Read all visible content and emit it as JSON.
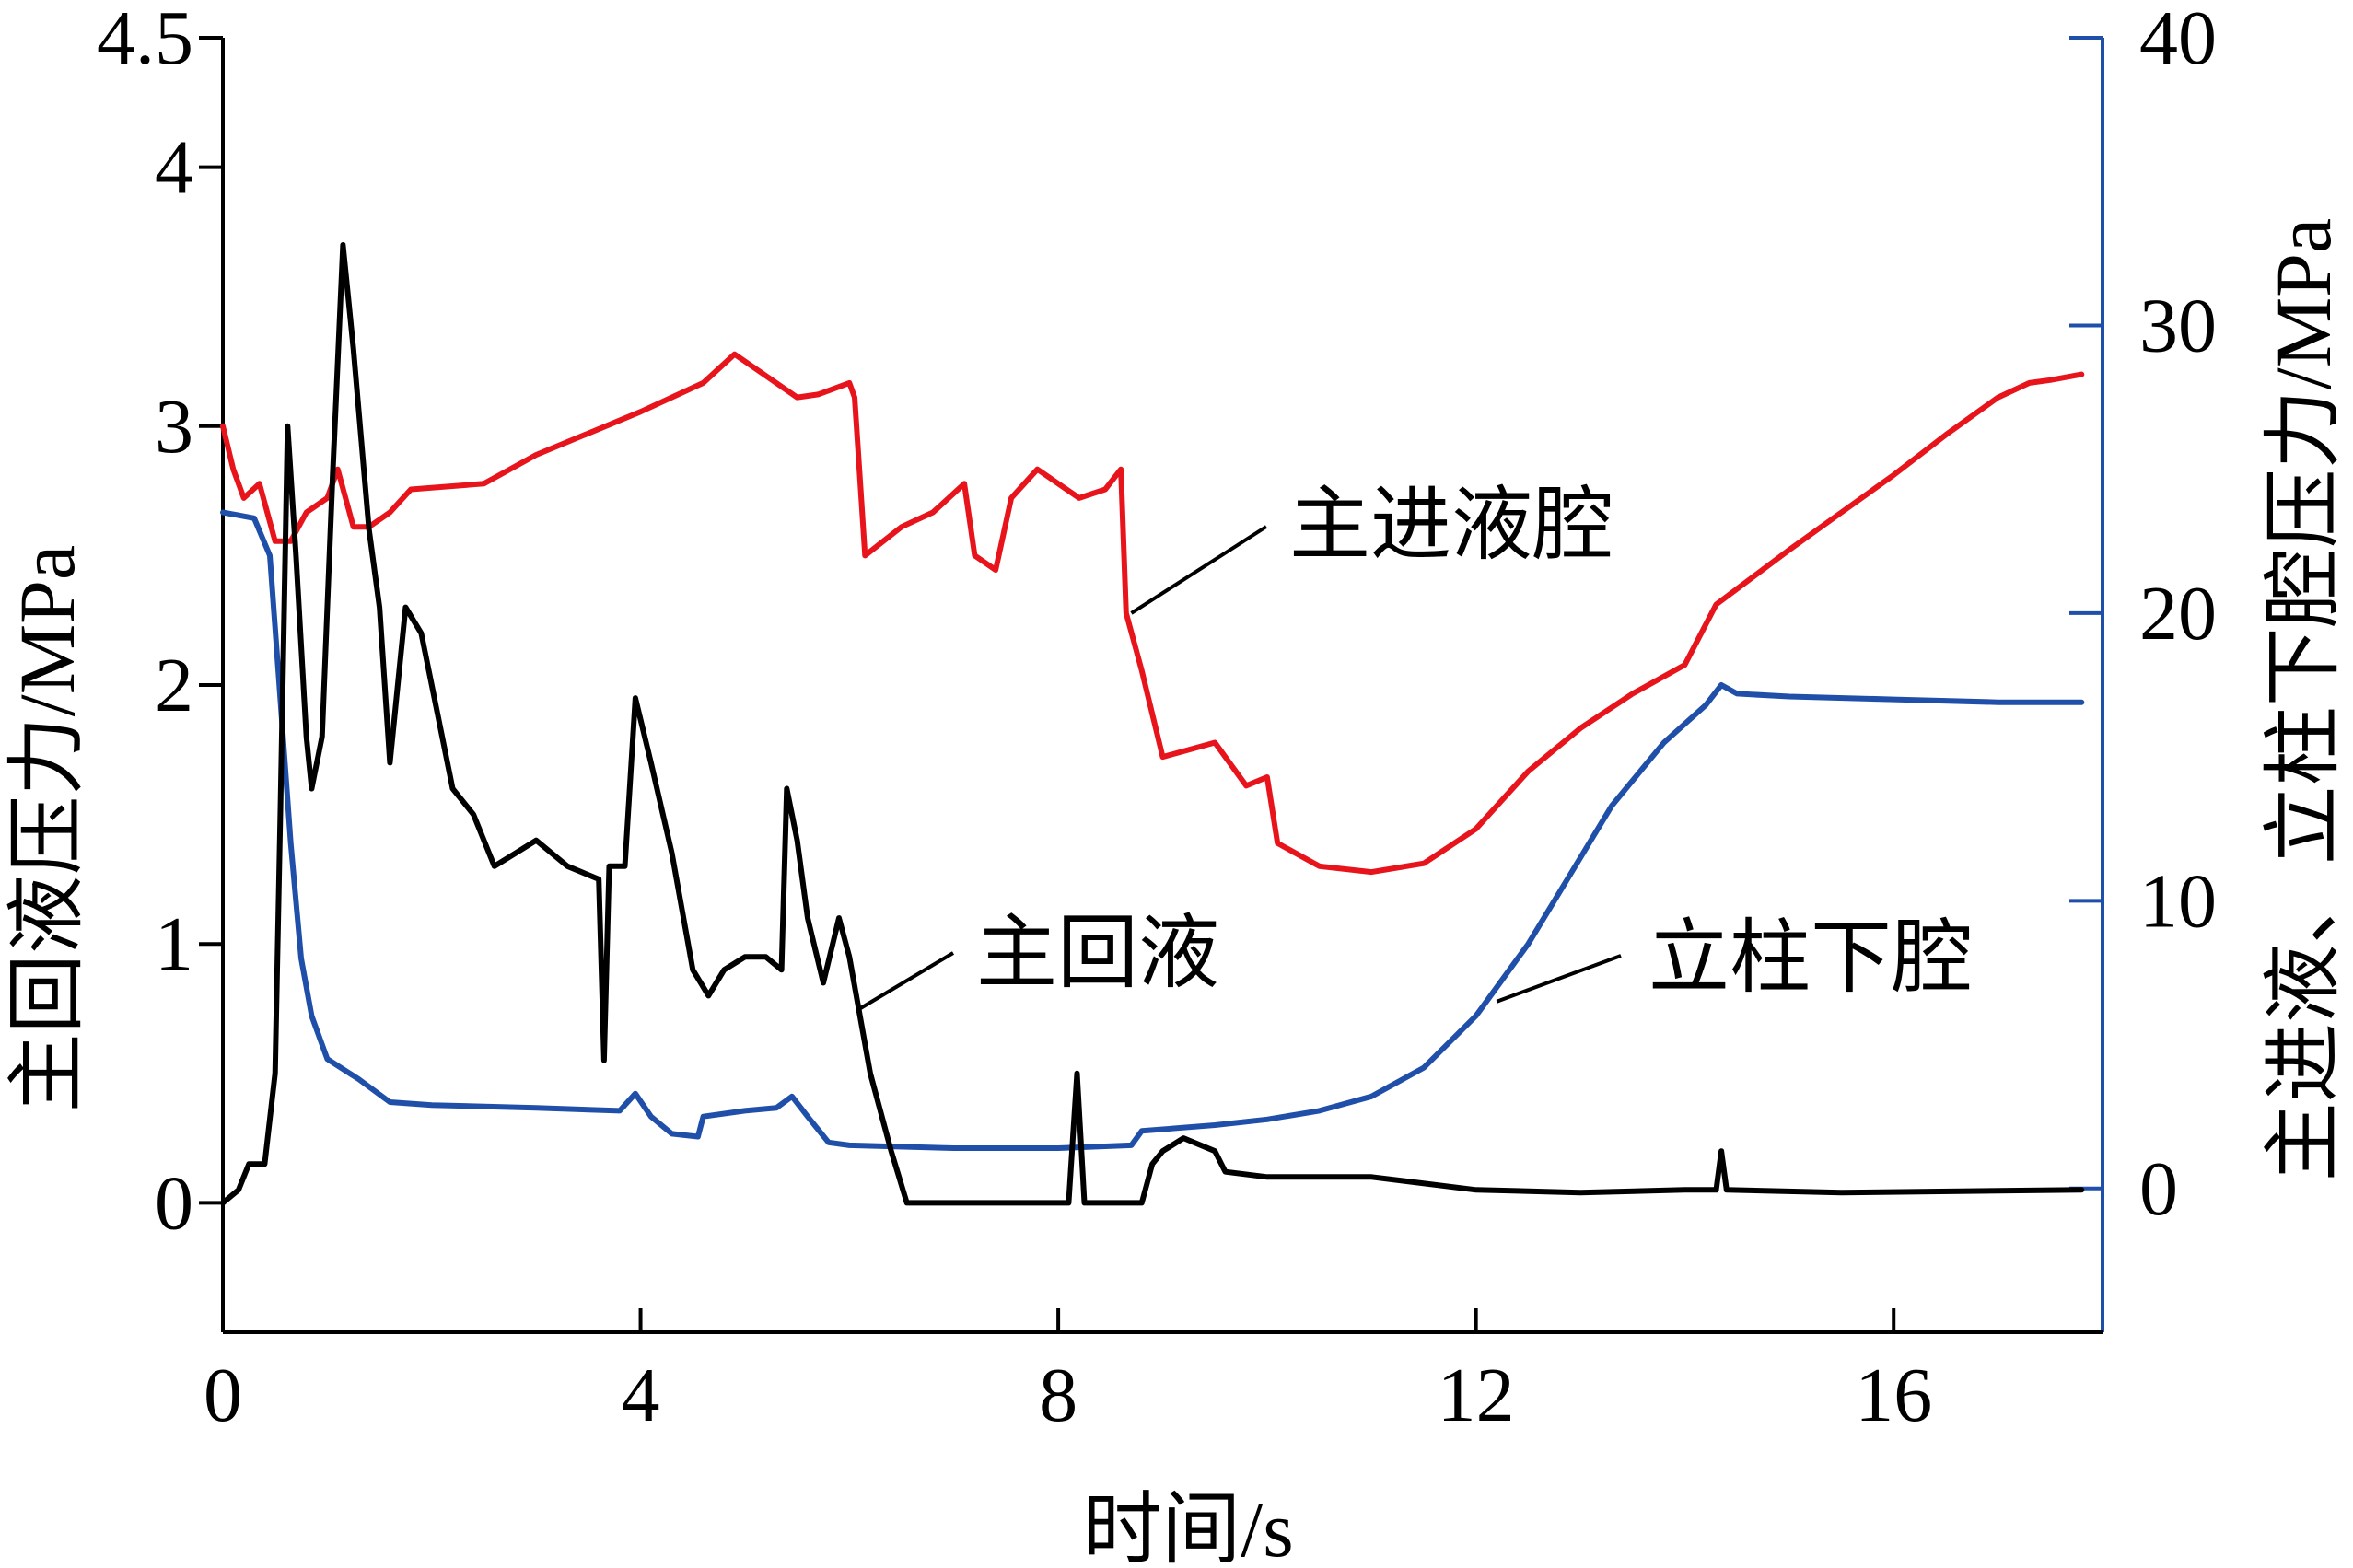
{
  "chart_data": {
    "type": "line",
    "xlabel": "时间/s",
    "ylabel_left": "主回液压力/MPa",
    "ylabel_right": "主进液、立柱下腔压力/MPa",
    "x_axis": {
      "min": 0,
      "max": 18,
      "ticks": [
        0,
        4,
        8,
        12,
        16
      ]
    },
    "y_left": {
      "min": -0.5,
      "max": 4.5,
      "ticks": [
        0,
        1,
        2,
        3,
        4,
        4.5
      ]
    },
    "y_right": {
      "min": -5,
      "max": 40,
      "ticks": [
        0,
        10,
        20,
        30,
        40
      ]
    },
    "grid": false,
    "colors": {
      "main_return": "#000000",
      "main_inlet": "#e8141b",
      "column_lower": "#1f4fa8",
      "right_axis": "#1f4fa8"
    },
    "series": [
      {
        "name": "主回液",
        "axis": "left",
        "color": "#000000",
        "points": [
          [
            0,
            0
          ],
          [
            0.15,
            0.05
          ],
          [
            0.25,
            0.15
          ],
          [
            0.4,
            0.15
          ],
          [
            0.5,
            0.5
          ],
          [
            0.55,
            1.5
          ],
          [
            0.62,
            3.0
          ],
          [
            0.7,
            2.5
          ],
          [
            0.8,
            1.8
          ],
          [
            0.85,
            1.6
          ],
          [
            0.95,
            1.8
          ],
          [
            1.05,
            2.8
          ],
          [
            1.15,
            3.7
          ],
          [
            1.25,
            3.3
          ],
          [
            1.4,
            2.6
          ],
          [
            1.5,
            2.3
          ],
          [
            1.6,
            1.7
          ],
          [
            1.75,
            2.3
          ],
          [
            1.9,
            2.2
          ],
          [
            2.0,
            2.0
          ],
          [
            2.2,
            1.6
          ],
          [
            2.4,
            1.5
          ],
          [
            2.6,
            1.3
          ],
          [
            2.8,
            1.35
          ],
          [
            3.0,
            1.4
          ],
          [
            3.3,
            1.3
          ],
          [
            3.6,
            1.25
          ],
          [
            3.65,
            0.55
          ],
          [
            3.7,
            1.3
          ],
          [
            3.85,
            1.3
          ],
          [
            3.95,
            1.95
          ],
          [
            4.1,
            1.7
          ],
          [
            4.3,
            1.35
          ],
          [
            4.5,
            0.9
          ],
          [
            4.65,
            0.8
          ],
          [
            4.8,
            0.9
          ],
          [
            5.0,
            0.95
          ],
          [
            5.2,
            0.95
          ],
          [
            5.35,
            0.9
          ],
          [
            5.4,
            1.6
          ],
          [
            5.5,
            1.4
          ],
          [
            5.6,
            1.1
          ],
          [
            5.75,
            0.85
          ],
          [
            5.9,
            1.1
          ],
          [
            6.0,
            0.95
          ],
          [
            6.2,
            0.5
          ],
          [
            6.4,
            0.2
          ],
          [
            6.55,
            0.0
          ],
          [
            7.0,
            0.0
          ],
          [
            7.5,
            0.0
          ],
          [
            8.1,
            0.0
          ],
          [
            8.18,
            0.5
          ],
          [
            8.25,
            0.0
          ],
          [
            8.8,
            0.0
          ],
          [
            8.9,
            0.15
          ],
          [
            9.0,
            0.2
          ],
          [
            9.2,
            0.25
          ],
          [
            9.5,
            0.2
          ],
          [
            9.6,
            0.12
          ],
          [
            10.0,
            0.1
          ],
          [
            11.0,
            0.1
          ],
          [
            12.0,
            0.05
          ],
          [
            13.0,
            0.04
          ],
          [
            14.0,
            0.05
          ],
          [
            14.3,
            0.05
          ],
          [
            14.35,
            0.2
          ],
          [
            14.4,
            0.05
          ],
          [
            15.5,
            0.04
          ],
          [
            17.8,
            0.05
          ]
        ]
      },
      {
        "name": "主进液腔",
        "axis": "right",
        "color": "#e8141b",
        "points": [
          [
            0,
            26.5
          ],
          [
            0.1,
            25
          ],
          [
            0.2,
            24
          ],
          [
            0.35,
            24.5
          ],
          [
            0.5,
            22.5
          ],
          [
            0.65,
            22.5
          ],
          [
            0.8,
            23.5
          ],
          [
            1.0,
            24
          ],
          [
            1.1,
            25
          ],
          [
            1.25,
            23
          ],
          [
            1.4,
            23
          ],
          [
            1.6,
            23.5
          ],
          [
            1.8,
            24.3
          ],
          [
            2.5,
            24.5
          ],
          [
            3.0,
            25.5
          ],
          [
            4.0,
            27
          ],
          [
            4.6,
            28
          ],
          [
            4.9,
            29
          ],
          [
            5.1,
            28.5
          ],
          [
            5.5,
            27.5
          ],
          [
            5.7,
            27.6
          ],
          [
            6.0,
            28
          ],
          [
            6.05,
            27.5
          ],
          [
            6.15,
            22
          ],
          [
            6.5,
            23
          ],
          [
            6.8,
            23.5
          ],
          [
            7.1,
            24.5
          ],
          [
            7.2,
            22
          ],
          [
            7.4,
            21.5
          ],
          [
            7.55,
            24
          ],
          [
            7.8,
            25
          ],
          [
            8.2,
            24
          ],
          [
            8.45,
            24.3
          ],
          [
            8.6,
            25
          ],
          [
            8.65,
            20
          ],
          [
            8.8,
            18
          ],
          [
            9.0,
            15
          ],
          [
            9.2,
            15.2
          ],
          [
            9.5,
            15.5
          ],
          [
            9.8,
            14
          ],
          [
            10.0,
            14.3
          ],
          [
            10.1,
            12
          ],
          [
            10.5,
            11.2
          ],
          [
            11.0,
            11
          ],
          [
            11.5,
            11.3
          ],
          [
            12.0,
            12.5
          ],
          [
            12.5,
            14.5
          ],
          [
            13.0,
            16
          ],
          [
            13.5,
            17.2
          ],
          [
            14.0,
            18.2
          ],
          [
            14.3,
            20.3
          ],
          [
            15.0,
            22.2
          ],
          [
            15.5,
            23.5
          ],
          [
            16.0,
            24.8
          ],
          [
            16.5,
            26.2
          ],
          [
            17.0,
            27.5
          ],
          [
            17.3,
            28
          ],
          [
            17.5,
            28.1
          ],
          [
            17.8,
            28.3
          ]
        ]
      },
      {
        "name": "立柱下腔",
        "axis": "right",
        "color": "#1f4fa8",
        "points": [
          [
            0,
            23.5
          ],
          [
            0.3,
            23.3
          ],
          [
            0.45,
            22
          ],
          [
            0.55,
            17
          ],
          [
            0.65,
            12
          ],
          [
            0.75,
            8
          ],
          [
            0.85,
            6
          ],
          [
            1.0,
            4.5
          ],
          [
            1.3,
            3.8
          ],
          [
            1.6,
            3.0
          ],
          [
            2.0,
            2.9
          ],
          [
            3.0,
            2.8
          ],
          [
            3.8,
            2.7
          ],
          [
            3.95,
            3.3
          ],
          [
            4.1,
            2.5
          ],
          [
            4.3,
            1.9
          ],
          [
            4.55,
            1.8
          ],
          [
            4.6,
            2.5
          ],
          [
            5.0,
            2.7
          ],
          [
            5.3,
            2.8
          ],
          [
            5.45,
            3.2
          ],
          [
            5.6,
            2.5
          ],
          [
            5.8,
            1.6
          ],
          [
            6.0,
            1.5
          ],
          [
            7.0,
            1.4
          ],
          [
            8.0,
            1.4
          ],
          [
            8.7,
            1.5
          ],
          [
            8.8,
            2.0
          ],
          [
            9.5,
            2.2
          ],
          [
            10.0,
            2.4
          ],
          [
            10.5,
            2.7
          ],
          [
            11.0,
            3.2
          ],
          [
            11.5,
            4.2
          ],
          [
            12.0,
            6.0
          ],
          [
            12.5,
            8.5
          ],
          [
            13.0,
            11.5
          ],
          [
            13.3,
            13.3
          ],
          [
            13.8,
            15.5
          ],
          [
            14.2,
            16.8
          ],
          [
            14.35,
            17.5
          ],
          [
            14.5,
            17.2
          ],
          [
            15.0,
            17.1
          ],
          [
            16.0,
            17.0
          ],
          [
            17.0,
            16.9
          ],
          [
            17.8,
            16.9
          ]
        ]
      }
    ],
    "annotations": [
      {
        "label": "主进液腔",
        "target_series": "主进液腔",
        "x": 8.7,
        "y_right": 20
      },
      {
        "label": "主回液",
        "target_series": "主回液",
        "x": 6.1,
        "y_left": 0.75
      },
      {
        "label": "立柱下腔",
        "target_series": "立柱下腔",
        "x": 12.2,
        "y_right": 6.5
      }
    ]
  }
}
